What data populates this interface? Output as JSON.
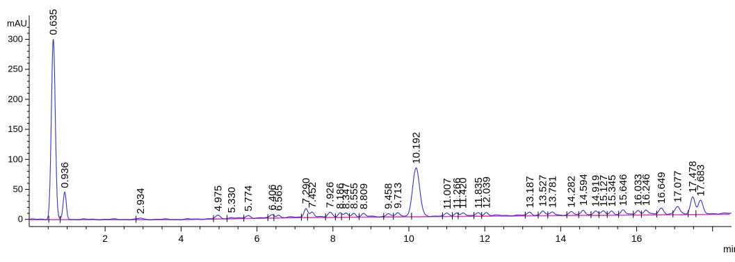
{
  "chart_data": {
    "type": "line",
    "title": "",
    "xlabel": "min",
    "ylabel": "mAU",
    "xlim": [
      0,
      18.5
    ],
    "ylim": [
      -12,
      340
    ],
    "x_ticks": [
      2,
      4,
      6,
      8,
      10,
      12,
      14,
      16
    ],
    "x_tick_labels": [
      "2",
      "4",
      "6",
      "8",
      "10",
      "12",
      "14",
      "16"
    ],
    "y_ticks": [
      0,
      50,
      100,
      150,
      200,
      250,
      300
    ],
    "y_tick_labels": [
      "0",
      "50",
      "100",
      "150",
      "200",
      "250",
      "300"
    ],
    "grid": false,
    "colors": {
      "trace": "#2f2fd8",
      "baseline": "#e040c8",
      "axis": "#000000",
      "peak_marker": "#000000"
    },
    "series": [
      {
        "peaks": [
          {
            "rt": 0.635,
            "label": "0.635",
            "height": 300,
            "width": 0.05
          },
          {
            "rt": 0.936,
            "label": "0.936",
            "height": 45,
            "width": 0.04
          },
          {
            "rt": 2.934,
            "label": "2.934",
            "height": 2,
            "width": 0.05
          },
          {
            "rt": 4.975,
            "label": "4.975",
            "height": 5,
            "width": 0.06
          },
          {
            "rt": 5.33,
            "label": "5.330",
            "height": 2,
            "width": 0.05
          },
          {
            "rt": 5.774,
            "label": "5.774",
            "height": 4,
            "width": 0.06
          },
          {
            "rt": 6.406,
            "label": "6.406",
            "height": 5,
            "width": 0.05
          },
          {
            "rt": 6.565,
            "label": "6.565",
            "height": 4,
            "width": 0.05
          },
          {
            "rt": 7.29,
            "label": "7.290",
            "height": 15,
            "width": 0.05
          },
          {
            "rt": 7.452,
            "label": "7.452",
            "height": 8,
            "width": 0.05
          },
          {
            "rt": 7.926,
            "label": "7.926",
            "height": 8,
            "width": 0.06
          },
          {
            "rt": 8.186,
            "label": "8.186",
            "height": 6,
            "width": 0.05
          },
          {
            "rt": 8.347,
            "label": "8.347",
            "height": 6,
            "width": 0.05
          },
          {
            "rt": 8.555,
            "label": "8.555",
            "height": 6,
            "width": 0.05
          },
          {
            "rt": 8.809,
            "label": "8.809",
            "height": 5,
            "width": 0.05
          },
          {
            "rt": 9.458,
            "label": "9.458",
            "height": 5,
            "width": 0.05
          },
          {
            "rt": 9.713,
            "label": "9.713",
            "height": 6,
            "width": 0.05
          },
          {
            "rt": 10.192,
            "label": "10.192",
            "height": 80,
            "width": 0.09
          },
          {
            "rt": 11.007,
            "label": "11.007",
            "height": 4,
            "width": 0.05
          },
          {
            "rt": 11.266,
            "label": "11.266",
            "height": 5,
            "width": 0.05
          },
          {
            "rt": 11.42,
            "label": "11.420",
            "height": 5,
            "width": 0.05
          },
          {
            "rt": 11.835,
            "label": "11.835",
            "height": 5,
            "width": 0.05
          },
          {
            "rt": 12.039,
            "label": "12.039",
            "height": 5,
            "width": 0.05
          },
          {
            "rt": 13.187,
            "label": "13.187",
            "height": 5,
            "width": 0.05
          },
          {
            "rt": 13.527,
            "label": "13.527",
            "height": 7,
            "width": 0.05
          },
          {
            "rt": 13.781,
            "label": "13.781",
            "height": 5,
            "width": 0.05
          },
          {
            "rt": 14.282,
            "label": "14.282",
            "height": 5,
            "width": 0.05
          },
          {
            "rt": 14.594,
            "label": "14.594",
            "height": 8,
            "width": 0.05
          },
          {
            "rt": 14.919,
            "label": "14.919",
            "height": 6,
            "width": 0.05
          },
          {
            "rt": 15.127,
            "label": "15.127",
            "height": 6,
            "width": 0.05
          },
          {
            "rt": 15.345,
            "label": "15.345",
            "height": 6,
            "width": 0.05
          },
          {
            "rt": 15.646,
            "label": "15.646",
            "height": 7,
            "width": 0.05
          },
          {
            "rt": 16.033,
            "label": "16.033",
            "height": 7,
            "width": 0.05
          },
          {
            "rt": 16.246,
            "label": "16.246",
            "height": 7,
            "width": 0.05
          },
          {
            "rt": 16.649,
            "label": "16.649",
            "height": 10,
            "width": 0.06
          },
          {
            "rt": 17.077,
            "label": "17.077",
            "height": 12,
            "width": 0.06
          },
          {
            "rt": 17.478,
            "label": "17.478",
            "height": 28,
            "width": 0.06
          },
          {
            "rt": 17.683,
            "label": "17.683",
            "height": 22,
            "width": 0.06
          }
        ]
      }
    ]
  }
}
